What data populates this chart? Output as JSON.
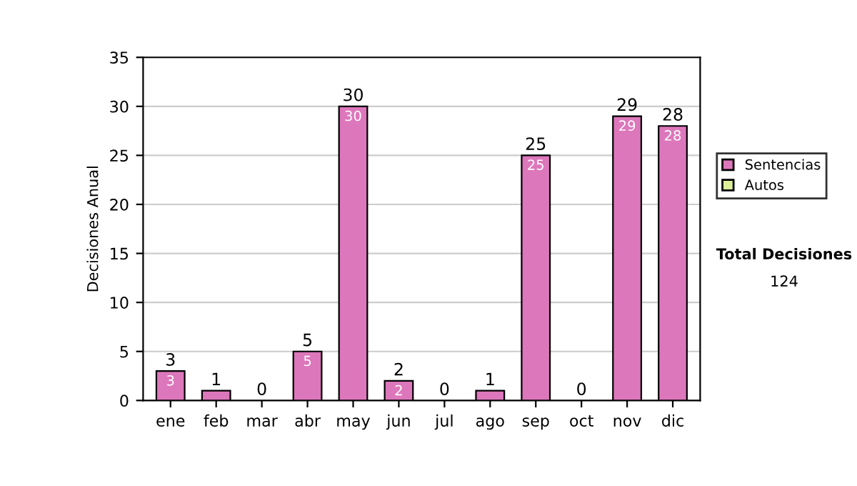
{
  "chart_data": {
    "type": "bar",
    "ylabel": "Decisiones Anual",
    "categories": [
      "ene",
      "feb",
      "mar",
      "abr",
      "may",
      "jun",
      "jul",
      "ago",
      "sep",
      "oct",
      "nov",
      "dic"
    ],
    "stacked": true,
    "series": [
      {
        "name": "Sentencias",
        "color": "#dd77bb",
        "values": [
          3,
          1,
          0,
          5,
          30,
          2,
          0,
          1,
          25,
          0,
          29,
          28
        ],
        "value_labels": [
          "3",
          null,
          null,
          "5",
          "30",
          "2",
          null,
          null,
          "25",
          null,
          "29",
          "28"
        ]
      },
      {
        "name": "Autos",
        "color": "#ddee99",
        "values": [
          0,
          0,
          0,
          0,
          0,
          0,
          0,
          0,
          0,
          0,
          0,
          0
        ]
      }
    ],
    "totals": [
      "3",
      "1",
      "0",
      "5",
      "30",
      "2",
      "0",
      "1",
      "25",
      "0",
      "29",
      "28"
    ],
    "ylim": [
      0,
      35
    ],
    "yticks": [
      0,
      5,
      10,
      15,
      20,
      25,
      30,
      35
    ],
    "grid": "y",
    "legend": "right",
    "annotations": [
      "Total Decisiones",
      "124"
    ]
  }
}
